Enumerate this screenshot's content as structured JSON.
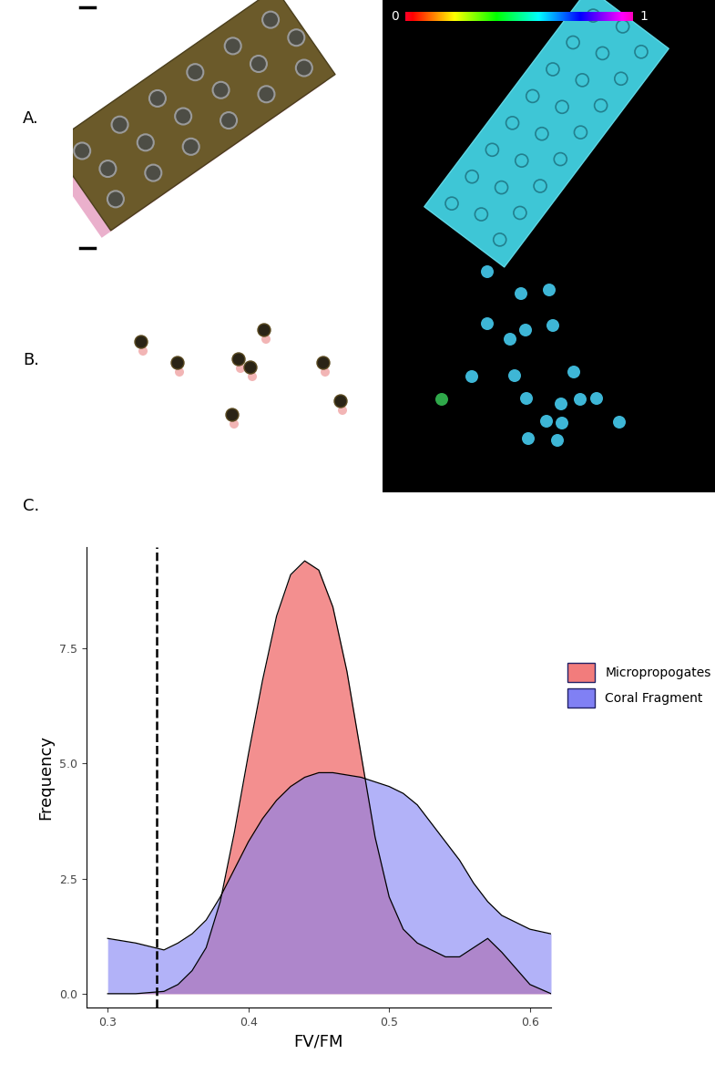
{
  "panel_labels": [
    "A.",
    "B.",
    "C."
  ],
  "colorbar": {
    "range": [
      0,
      1
    ],
    "ticks": [
      0,
      1
    ]
  },
  "chart_data": {
    "type": "area",
    "x_label": "FV/FM",
    "y_label": "Frequency",
    "x": [
      0.3,
      0.32,
      0.34,
      0.35,
      0.36,
      0.37,
      0.38,
      0.39,
      0.4,
      0.41,
      0.42,
      0.43,
      0.44,
      0.45,
      0.46,
      0.47,
      0.48,
      0.49,
      0.5,
      0.51,
      0.52,
      0.54,
      0.55,
      0.56,
      0.57,
      0.58,
      0.6,
      0.615
    ],
    "series": [
      {
        "name": "Micropropogates",
        "color": "#f27c7c",
        "values": [
          0.0,
          0.0,
          0.05,
          0.2,
          0.5,
          1.0,
          2.0,
          3.5,
          5.2,
          6.8,
          8.2,
          9.1,
          9.4,
          9.2,
          8.4,
          7.0,
          5.2,
          3.4,
          2.1,
          1.4,
          1.1,
          0.8,
          0.8,
          1.0,
          1.2,
          0.9,
          0.2,
          0.0
        ]
      },
      {
        "name": "Coral Fragment",
        "color": "#8080f4",
        "values": [
          1.2,
          1.1,
          0.95,
          1.1,
          1.3,
          1.6,
          2.1,
          2.7,
          3.3,
          3.8,
          4.2,
          4.5,
          4.7,
          4.8,
          4.8,
          4.75,
          4.7,
          4.6,
          4.5,
          4.35,
          4.1,
          3.3,
          2.9,
          2.4,
          2.0,
          1.7,
          1.4,
          1.3
        ]
      }
    ],
    "reference_line": 0.335,
    "xlim": [
      0.285,
      0.615
    ],
    "ylim": [
      -0.3,
      9.7
    ],
    "xticks": [
      0.3,
      0.4,
      0.5,
      0.6
    ],
    "yticks": [
      0.0,
      2.5,
      5.0,
      7.5
    ],
    "legend": "right",
    "grid": false
  }
}
